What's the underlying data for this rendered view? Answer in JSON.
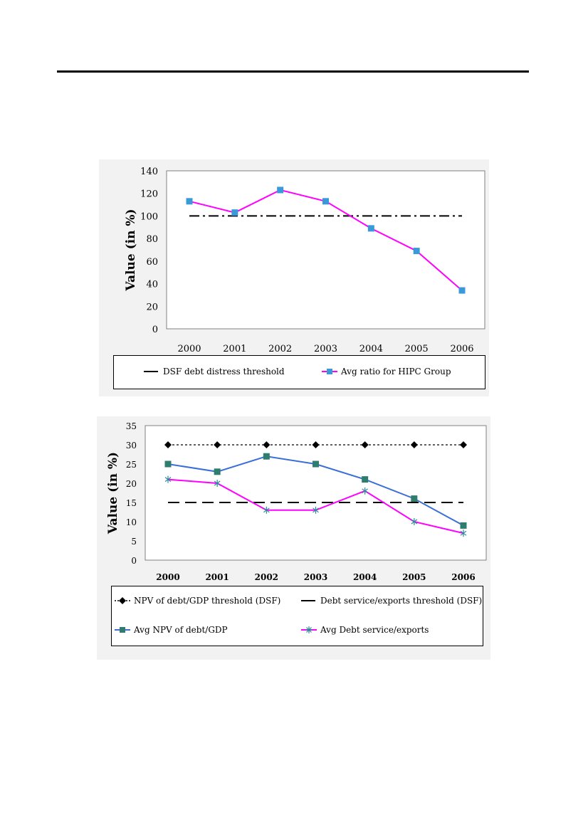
{
  "chart_data": [
    {
      "type": "line",
      "title": "",
      "ylabel": "Value (in %)",
      "xlabel": "",
      "categories": [
        "2000",
        "2001",
        "2002",
        "2003",
        "2004",
        "2005",
        "2006"
      ],
      "ylim": [
        0,
        140
      ],
      "yticks": [
        0,
        20,
        40,
        60,
        80,
        100,
        120,
        140
      ],
      "grid": false,
      "legend_position": "bottom",
      "series": [
        {
          "name": "DSF debt distress threshold",
          "values": [
            100,
            100,
            100,
            100,
            100,
            100,
            100
          ],
          "color": "#000000",
          "style": "dash-dot",
          "marker": "none"
        },
        {
          "name": "Avg ratio for HIPC Group",
          "values": [
            113,
            103,
            123,
            113,
            89,
            69,
            34
          ],
          "color": "#ff00ff",
          "style": "solid",
          "marker": "square",
          "marker_color": "#3a9ad9"
        }
      ]
    },
    {
      "type": "line",
      "title": "",
      "ylabel": "Value (in %)",
      "xlabel": "",
      "categories": [
        "2000",
        "2001",
        "2002",
        "2003",
        "2004",
        "2005",
        "2006"
      ],
      "ylim": [
        0,
        35
      ],
      "yticks": [
        0,
        5,
        10,
        15,
        20,
        25,
        30,
        35
      ],
      "grid": false,
      "legend_position": "bottom",
      "series": [
        {
          "name": "NPV of debt/GDP threshold (DSF)",
          "values": [
            30,
            30,
            30,
            30,
            30,
            30,
            30
          ],
          "color": "#000000",
          "style": "dotted",
          "marker": "diamond"
        },
        {
          "name": "Debt service/exports threshold (DSF)",
          "values": [
            15,
            15,
            15,
            15,
            15,
            15,
            15
          ],
          "color": "#000000",
          "style": "long-dash",
          "marker": "none"
        },
        {
          "name": "Avg NPV of debt/GDP",
          "values": [
            25,
            23,
            27,
            25,
            21,
            16,
            9
          ],
          "color": "#3a6fd8",
          "style": "solid",
          "marker": "square",
          "marker_color": "#2e7d6e"
        },
        {
          "name": "Avg Debt service/exports",
          "values": [
            21,
            20,
            13,
            13,
            18,
            10,
            7
          ],
          "color": "#ff00ff",
          "style": "solid",
          "marker": "asterisk",
          "marker_color": "#2a8a9a"
        }
      ]
    }
  ]
}
